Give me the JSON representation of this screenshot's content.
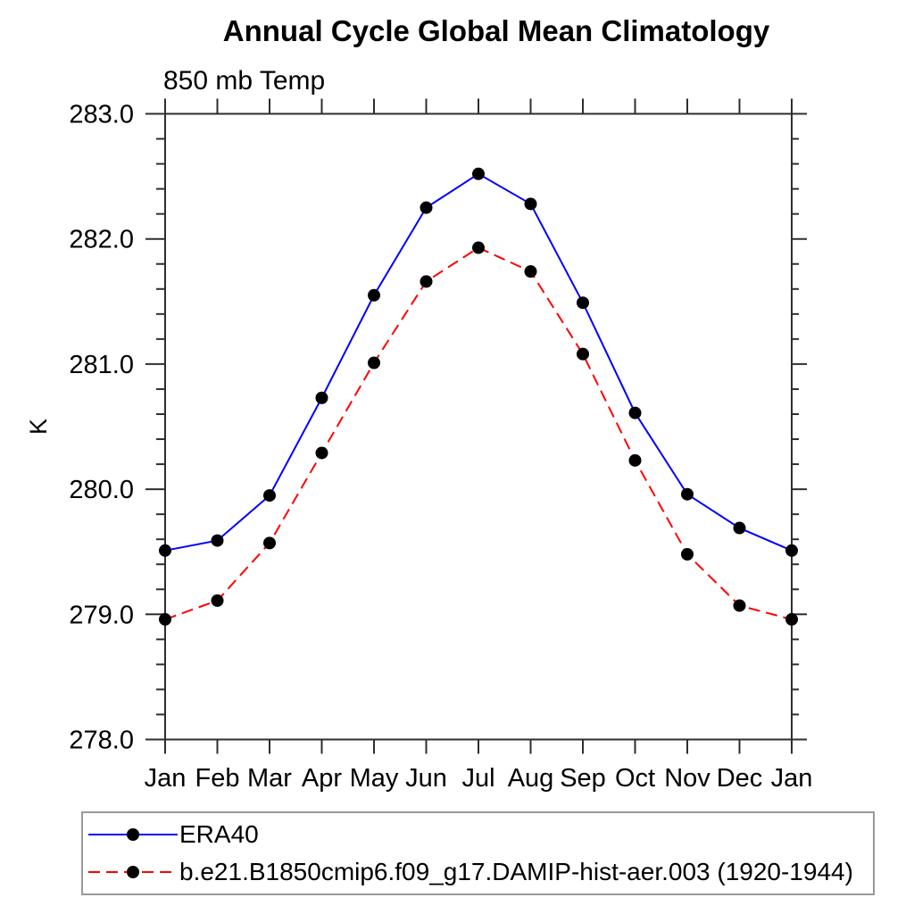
{
  "header": {
    "title": "Annual Cycle Global Mean Climatology",
    "subtitle": "850 mb Temp"
  },
  "chart_data": {
    "type": "line",
    "title": "Annual Cycle Global Mean Climatology",
    "subtitle": "850 mb Temp",
    "xlabel": "",
    "ylabel": "K",
    "categories": [
      "Jan",
      "Feb",
      "Mar",
      "Apr",
      "May",
      "Jun",
      "Jul",
      "Aug",
      "Sep",
      "Oct",
      "Nov",
      "Dec",
      "Jan"
    ],
    "ylim": [
      278.0,
      283.0
    ],
    "ytick_major_step": 1.0,
    "ytick_minor_step": 0.2,
    "ytick_labels": [
      "278.0",
      "279.0",
      "280.0",
      "281.0",
      "282.0",
      "283.0"
    ],
    "grid": false,
    "legend_position": "bottom-left",
    "axis_color": "#2e2e2e",
    "marker_radius": 7,
    "series": [
      {
        "name": "ERA40",
        "color": "#0000ff",
        "line_style": "solid",
        "marker": "filled-circle",
        "marker_color": "#000000",
        "values": [
          279.51,
          279.59,
          279.95,
          280.73,
          281.55,
          282.25,
          282.52,
          282.28,
          281.49,
          280.61,
          279.96,
          279.69,
          279.51
        ]
      },
      {
        "name": "b.e21.B1850cmip6.f09_g17.DAMIP-hist-aer.003 (1920-1944)",
        "color": "#ff0000",
        "line_style": "dashed",
        "marker": "filled-circle",
        "marker_color": "#000000",
        "values": [
          278.96,
          279.11,
          279.57,
          280.29,
          281.01,
          281.66,
          281.93,
          281.74,
          281.08,
          280.23,
          279.48,
          279.07,
          278.96
        ]
      }
    ]
  }
}
